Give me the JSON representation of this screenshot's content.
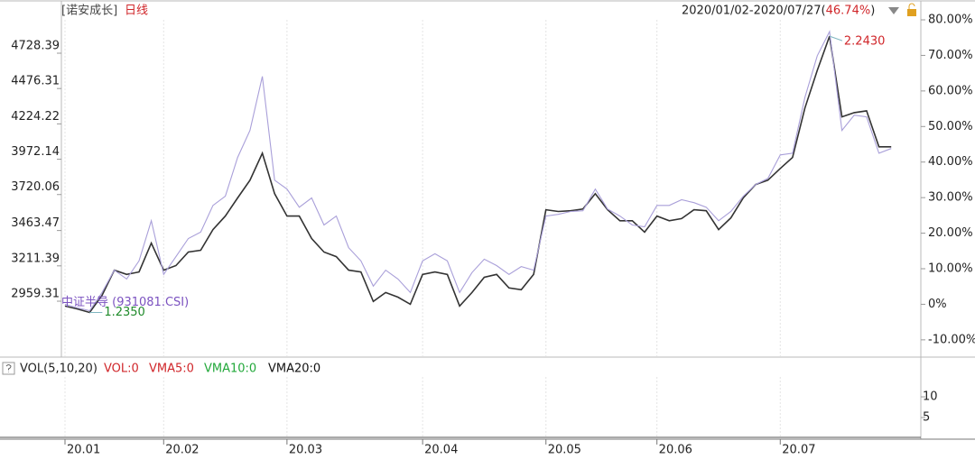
{
  "header": {
    "fund": "[诺安成长]",
    "period": "日线",
    "range": "2020/01/02-2020/07/27(",
    "change": "46.74%",
    "close": ")"
  },
  "chart_data": [
    {
      "type": "line",
      "categories": [
        "20.01",
        null,
        null,
        null,
        null,
        null,
        null,
        null,
        "20.02",
        null,
        null,
        null,
        null,
        null,
        null,
        null,
        null,
        null,
        "20.03",
        null,
        null,
        null,
        null,
        null,
        null,
        null,
        null,
        null,
        null,
        "20.04",
        null,
        null,
        null,
        null,
        null,
        null,
        null,
        null,
        null,
        "20.05",
        null,
        null,
        null,
        null,
        null,
        null,
        null,
        null,
        "20.06",
        null,
        null,
        null,
        null,
        null,
        null,
        null,
        null,
        null,
        "20.07",
        null,
        null,
        null,
        null,
        null,
        null,
        null,
        null,
        null
      ],
      "series": [
        {
          "color": "#333333",
          "values": [
            -0.5,
            -1.3,
            -2.3,
            2.5,
            9.6,
            8.4,
            9.1,
            17.2,
            9.6,
            10.9,
            14.7,
            15.2,
            21.0,
            24.8,
            29.9,
            34.9,
            42.5,
            31.1,
            24.8,
            24.8,
            18.5,
            14.7,
            13.4,
            9.6,
            9.1,
            0.8,
            3.3,
            2.0,
            0,
            8.4,
            9.1,
            8.4,
            -0.5,
            3.3,
            7.6,
            8.4,
            4.6,
            4.1,
            8.4,
            26.6,
            26.1,
            26.3,
            26.8,
            31.1,
            26.6,
            23.5,
            23.5,
            20.3,
            24.8,
            23.5,
            24.1,
            26.6,
            26.3,
            21.0,
            24.3,
            29.9,
            33.7,
            34.9,
            38.2,
            41.3,
            55.2,
            65.8,
            75.4,
            52.7,
            53.9,
            54.4,
            44.3,
            44.3
          ]
        },
        {
          "name": "中证半导 (931081.CSI)",
          "color": "#a99fd9",
          "label_color": "#7b52c0",
          "values": [
            0,
            -1.0,
            -1.8,
            3.3,
            9.6,
            7.1,
            12.2,
            23.5,
            8.4,
            13.4,
            18.5,
            20.3,
            27.8,
            30.4,
            41.3,
            48.9,
            64.1,
            34.9,
            32.4,
            27.3,
            29.9,
            22.3,
            24.8,
            15.9,
            12.2,
            5.1,
            9.6,
            7.1,
            3.3,
            12.2,
            14.2,
            12.2,
            3.3,
            8.9,
            12.7,
            10.9,
            8.4,
            10.6,
            9.6,
            24.8,
            25.3,
            26.1,
            26.3,
            32.4,
            26.8,
            24.8,
            22.3,
            21.8,
            27.8,
            27.8,
            29.4,
            28.6,
            27.3,
            23.5,
            26.1,
            30.4,
            33.7,
            35.4,
            42.0,
            42.5,
            58.2,
            69.9,
            76.7,
            48.9,
            53.2,
            52.7,
            42.5,
            43.8
          ]
        }
      ],
      "max_label": "2.2430",
      "max_color": "#d0262a",
      "min_label": "1.2350",
      "min_color": "#1f8a2a",
      "ylim": [
        -14.6,
        80
      ],
      "yticks": [
        {
          "value": 80,
          "label": "80.00%"
        },
        {
          "value": 70,
          "label": "70.00%"
        },
        {
          "value": 60,
          "label": "60.00%"
        },
        {
          "value": 50,
          "label": "50.00%"
        },
        {
          "value": 40,
          "label": "40.00%"
        },
        {
          "value": 30,
          "label": "30.00%"
        },
        {
          "value": 20,
          "label": "20.00%"
        },
        {
          "value": 10,
          "label": "10.00%"
        },
        {
          "value": 0,
          "label": "0%"
        },
        {
          "value": -10,
          "label": "-10.00%"
        }
      ],
      "y2lim": [
        2566.9,
        4966.4
      ],
      "y2ticks": [
        4728.39,
        4476.31,
        4224.22,
        3972.14,
        3720.06,
        3463.47,
        3211.39,
        2959.31
      ],
      "grid": true
    },
    {
      "type": "bar",
      "title": "VOL(5,10,20)",
      "legend": [
        {
          "text": "VOL:0",
          "color": "#d0262a"
        },
        {
          "text": "VMA5:0",
          "color": "#d0262a"
        },
        {
          "text": "VMA10:0",
          "color": "#22a83a"
        },
        {
          "text": "VMA20:0",
          "color": "#111111"
        }
      ],
      "ylim": [
        0,
        14.8
      ],
      "yticks": [
        5,
        10
      ]
    }
  ]
}
